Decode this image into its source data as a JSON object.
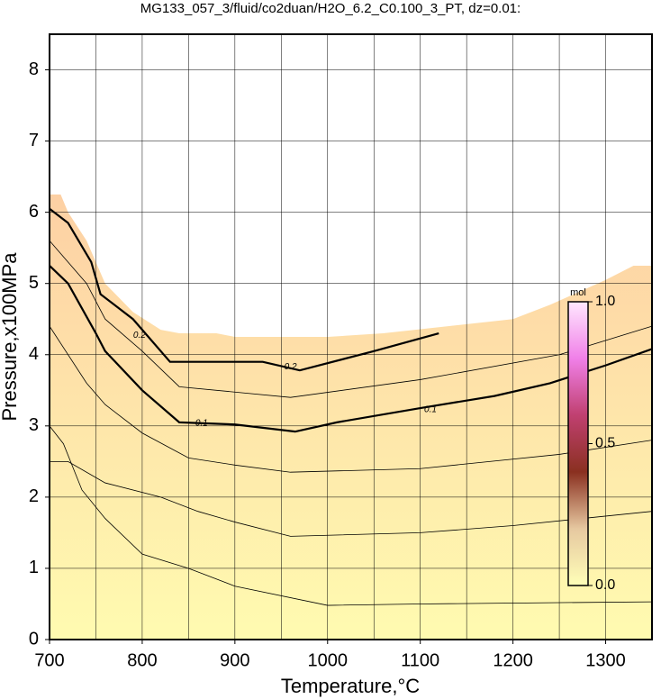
{
  "chart_data": {
    "type": "contour",
    "title": "MG133_057_3/fluid/co2duan/H2O_6.2_C0.100_3_PT, dz=0.01:",
    "x_label": "Temperature,°C",
    "y_label": "Pressure,x100MPa",
    "xlim": [
      700,
      1350
    ],
    "ylim": [
      0,
      8.5
    ],
    "xticks": [
      700,
      800,
      900,
      1000,
      1100,
      1200,
      1300
    ],
    "xgrid": [
      700,
      750,
      800,
      850,
      900,
      950,
      1000,
      1050,
      1100,
      1150,
      1200,
      1250,
      1300,
      1350
    ],
    "yticks": [
      0,
      1,
      2,
      3,
      4,
      5,
      6,
      7,
      8
    ],
    "grid": true,
    "field_colors": [
      "#fffbb0",
      "#fdd0a4"
    ],
    "field_boundary": {
      "x": [
        700,
        712,
        720,
        740,
        760,
        790,
        820,
        840,
        880,
        900,
        1000,
        1060,
        1130,
        1200,
        1240,
        1300,
        1330,
        1350
      ],
      "y": [
        6.25,
        6.25,
        6.0,
        5.6,
        5.0,
        4.6,
        4.35,
        4.3,
        4.3,
        4.25,
        4.25,
        4.3,
        4.4,
        4.5,
        4.7,
        5.05,
        5.25,
        5.25
      ]
    },
    "series": [
      {
        "x": [
          700,
          720,
          745,
          755,
          790,
          830,
          930,
          970,
          1050,
          1120
        ],
        "y": [
          6.05,
          5.85,
          5.3,
          4.85,
          4.5,
          3.9,
          3.9,
          3.78,
          4.05,
          4.3
        ],
        "width": 2.2
      },
      {
        "x": [
          700,
          720,
          750,
          760,
          800,
          840,
          900,
          965,
          1010,
          1100,
          1180,
          1240,
          1300,
          1350
        ],
        "y": [
          5.25,
          5.0,
          4.3,
          4.05,
          3.5,
          3.05,
          3.02,
          2.92,
          3.05,
          3.25,
          3.42,
          3.6,
          3.85,
          4.08
        ],
        "width": 2.2
      },
      {
        "x": [
          700,
          740,
          760,
          800,
          840,
          960,
          1100,
          1250,
          1350
        ],
        "y": [
          5.6,
          5.0,
          4.5,
          4.05,
          3.55,
          3.4,
          3.65,
          4.0,
          4.4
        ],
        "width": 0.8
      },
      {
        "x": [
          700,
          740,
          760,
          800,
          850,
          900,
          960,
          1100,
          1250,
          1350
        ],
        "y": [
          4.4,
          3.6,
          3.3,
          2.9,
          2.55,
          2.45,
          2.35,
          2.4,
          2.6,
          2.8
        ],
        "width": 0.8
      },
      {
        "x": [
          700,
          720,
          760,
          820,
          860,
          900,
          960,
          1100,
          1200,
          1350
        ],
        "y": [
          2.5,
          2.5,
          2.2,
          2.0,
          1.8,
          1.65,
          1.45,
          1.5,
          1.6,
          1.8
        ],
        "width": 0.8
      },
      {
        "x": [
          700,
          715,
          735,
          760,
          800,
          850,
          900,
          1000,
          1100,
          1350
        ],
        "y": [
          3.0,
          2.75,
          2.1,
          1.7,
          1.2,
          1.0,
          0.75,
          0.48,
          0.5,
          0.53
        ],
        "width": 0.8
      }
    ],
    "contour_labels": [
      {
        "text": "0.2",
        "x": 797,
        "y": 4.27
      },
      {
        "text": "0.2",
        "x": 960,
        "y": 3.83
      },
      {
        "text": "0.1",
        "x": 864,
        "y": 3.04
      },
      {
        "text": "0.1",
        "x": 1111,
        "y": 3.23
      }
    ],
    "colorbar": {
      "label": "mol",
      "lim": [
        0,
        1
      ],
      "ticks": [
        {
          "value": 0,
          "label": "0.0"
        },
        {
          "value": 0.5,
          "label": "0.5"
        },
        {
          "value": 1,
          "label": "1.0"
        }
      ],
      "colors": [
        "#ffffb8",
        "#e6c8a0",
        "#8a3020",
        "#c04070",
        "#f080e8",
        "#ffe8ff"
      ]
    }
  }
}
